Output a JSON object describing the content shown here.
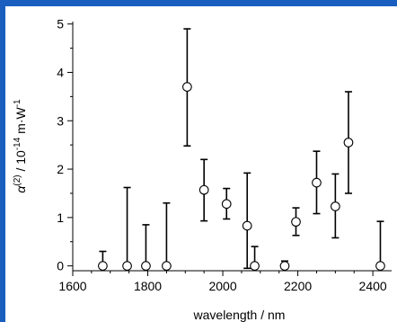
{
  "colors": {
    "frame": "#1a5fc0",
    "panel": "#ffffff",
    "ink": "#000000"
  },
  "chart_data": {
    "type": "scatter",
    "title": "",
    "xlabel": "wavelength / nm",
    "ylabel": "α(2) / 10-14 m·W-1",
    "ylabel_parts": {
      "symbol": "α",
      "symbol_sup": "(2)",
      "mid": " / 10",
      "exp": "-14",
      "unit": " m·W",
      "unit_exp": "-1"
    },
    "xlim": [
      1600,
      2450
    ],
    "ylim": [
      -0.1,
      5.05
    ],
    "xticks": [
      1600,
      1800,
      2000,
      2200,
      2400
    ],
    "yticks": [
      0,
      1,
      2,
      3,
      4,
      5
    ],
    "x_minor_step": 50,
    "y_minor_step": 0.5,
    "grid": false,
    "legend": "none",
    "points": [
      {
        "x": 1680,
        "y": 0.0,
        "err_low": 0.0,
        "err_high": 0.3
      },
      {
        "x": 1745,
        "y": 0.0,
        "err_low": 0.0,
        "err_high": 1.62
      },
      {
        "x": 1795,
        "y": 0.0,
        "err_low": 0.0,
        "err_high": 0.85
      },
      {
        "x": 1850,
        "y": 0.0,
        "err_low": 0.0,
        "err_high": 1.3
      },
      {
        "x": 1905,
        "y": 3.7,
        "err_low": 2.48,
        "err_high": 4.9
      },
      {
        "x": 1950,
        "y": 1.57,
        "err_low": 0.93,
        "err_high": 2.2
      },
      {
        "x": 2010,
        "y": 1.28,
        "err_low": 0.97,
        "err_high": 1.6
      },
      {
        "x": 2065,
        "y": 0.83,
        "err_low": -0.05,
        "err_high": 1.92
      },
      {
        "x": 2085,
        "y": 0.0,
        "err_low": 0.0,
        "err_high": 0.4
      },
      {
        "x": 2165,
        "y": 0.0,
        "err_low": 0.0,
        "err_high": 0.1
      },
      {
        "x": 2195,
        "y": 0.91,
        "err_low": 0.63,
        "err_high": 1.2
      },
      {
        "x": 2250,
        "y": 1.72,
        "err_low": 1.08,
        "err_high": 2.37
      },
      {
        "x": 2300,
        "y": 1.23,
        "err_low": 0.58,
        "err_high": 1.9
      },
      {
        "x": 2335,
        "y": 2.55,
        "err_low": 1.5,
        "err_high": 3.6
      },
      {
        "x": 2420,
        "y": 0.0,
        "err_low": 0.0,
        "err_high": 0.92
      }
    ]
  }
}
